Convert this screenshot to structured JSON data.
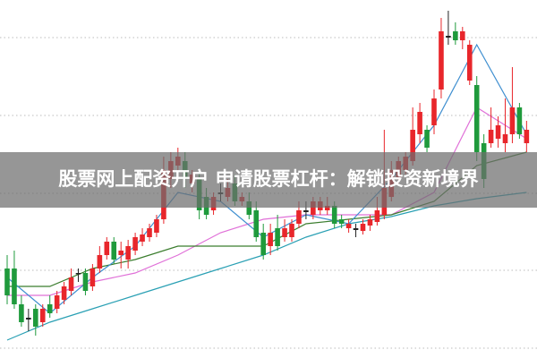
{
  "chart_data": {
    "type": "candlestick",
    "title": "股票网上配资开户 申请股票杠杆：解锁投资新境界",
    "ylim": [
      0,
      100
    ],
    "gridlines": [
      89.5,
      67.75,
      46,
      24.5,
      2.75
    ],
    "up_color": "#e8262b",
    "down_color": "#1f9a3c",
    "doji_color": "#222222",
    "open": [
      25,
      25,
      15,
      11.25,
      13.75,
      10,
      15,
      13.75,
      16.25,
      18.75,
      23.75,
      23.75,
      20,
      25,
      28.75,
      32.5,
      28.75,
      27.5,
      30,
      32.5,
      33.75,
      35,
      38.75,
      50,
      53.75,
      55,
      48.75,
      50,
      45,
      41.25,
      46.25,
      45,
      48.75,
      43.75,
      43.75,
      41.25,
      35,
      31.25,
      36.25,
      33.75,
      33.75,
      37.5,
      41.25,
      40,
      41.25,
      41.25,
      42.5,
      38.75,
      36.25,
      36.25,
      35.5,
      37,
      38,
      40,
      45,
      50,
      52.5,
      55,
      62.5,
      63.75,
      65,
      75,
      90,
      91.25,
      88.75,
      77.5,
      76.25,
      60,
      60,
      61.25,
      60,
      62.5,
      70,
      60
    ],
    "high": [
      28.75,
      30,
      17.5,
      13.75,
      15,
      15,
      17.5,
      18.75,
      21.25,
      25,
      25,
      25,
      26.25,
      31.25,
      33.75,
      33.75,
      32.5,
      33,
      35,
      36.25,
      37.5,
      40,
      56.25,
      57.5,
      58.75,
      57.5,
      52.5,
      52.5,
      47.5,
      46.25,
      48.75,
      50,
      51.25,
      46.25,
      46.25,
      43.75,
      37.5,
      37.5,
      40,
      38.75,
      38.75,
      43.75,
      43.75,
      45,
      45,
      45,
      43.75,
      40,
      38.75,
      37.5,
      38.75,
      40,
      45,
      63.75,
      55,
      56.25,
      57.5,
      70,
      71.25,
      65,
      75,
      95,
      97,
      93.75,
      92.5,
      88.75,
      78.75,
      62.5,
      70,
      67.5,
      72.5,
      81.25,
      71.25,
      66.25
    ],
    "low": [
      15,
      13.75,
      8.75,
      7.5,
      6.25,
      8.75,
      11.25,
      12.5,
      15,
      17.5,
      21.25,
      17.5,
      18.75,
      23.75,
      27.5,
      26.25,
      25,
      25,
      28.75,
      31.25,
      32.5,
      33.75,
      37.5,
      47.5,
      51.25,
      47.5,
      46.25,
      38.75,
      38.75,
      40,
      43.75,
      43.75,
      42.5,
      42.5,
      38.75,
      32.5,
      27.5,
      28.75,
      30,
      32.5,
      32.5,
      36.25,
      38.75,
      38.75,
      40,
      40,
      36.25,
      36.25,
      35,
      33.75,
      34.5,
      35.5,
      37,
      38.75,
      43.75,
      48.75,
      51.25,
      53.75,
      60,
      57.5,
      62.5,
      72.5,
      87.5,
      87.5,
      86.25,
      76.25,
      55,
      47.5,
      58.75,
      58.75,
      57.5,
      60,
      61.25,
      57.5
    ],
    "close": [
      17.5,
      15,
      10,
      10.75,
      8.75,
      13.75,
      12.5,
      17.5,
      20,
      22.5,
      23.5,
      18.75,
      25,
      28.75,
      32.5,
      27.5,
      30,
      31.25,
      33.75,
      34.5,
      36.25,
      38.75,
      52.5,
      55,
      56.25,
      50,
      51.25,
      41.25,
      40,
      45,
      45.75,
      47.5,
      43.75,
      45,
      40,
      33.75,
      28.75,
      35,
      31.25,
      36.25,
      37.5,
      41.25,
      40.75,
      43.75,
      43.75,
      42.5,
      37.5,
      37.5,
      37.5,
      35.75,
      37.5,
      38.75,
      41.25,
      47.5,
      52.5,
      55,
      56.25,
      63.75,
      68.75,
      58.75,
      72.5,
      91.25,
      89.5,
      88.75,
      91.25,
      87.5,
      57.5,
      50,
      63.75,
      65,
      62.5,
      70,
      62.5,
      63.75
    ],
    "ma_index": [
      0,
      6,
      12,
      18,
      24,
      30,
      36,
      42,
      48,
      54,
      60,
      66,
      73
    ],
    "series": [
      {
        "color": "#2aa0b4",
        "values": [
          5,
          10,
          13.75,
          17.5,
          21.25,
          25,
          28.75,
          33.75,
          37.5,
          39.5,
          42.5,
          44.5,
          46.25
        ]
      },
      {
        "color": "#e070d8",
        "values": [
          17.5,
          17.5,
          21.25,
          23.75,
          28.75,
          35,
          38.75,
          40,
          40,
          40,
          46.25,
          70,
          61.25
        ]
      },
      {
        "color": "#3b7d2e",
        "values": [
          20,
          20,
          25,
          27.5,
          31.25,
          31.25,
          31.25,
          37.5,
          38.75,
          40,
          43.75,
          53.75,
          57.5
        ]
      },
      {
        "color": "#3f8fd0",
        "values": [
          22.5,
          12.5,
          22.5,
          31.25,
          46.25,
          43.75,
          33.75,
          40,
          37.5,
          50,
          65,
          87.5,
          62.5
        ]
      }
    ]
  }
}
